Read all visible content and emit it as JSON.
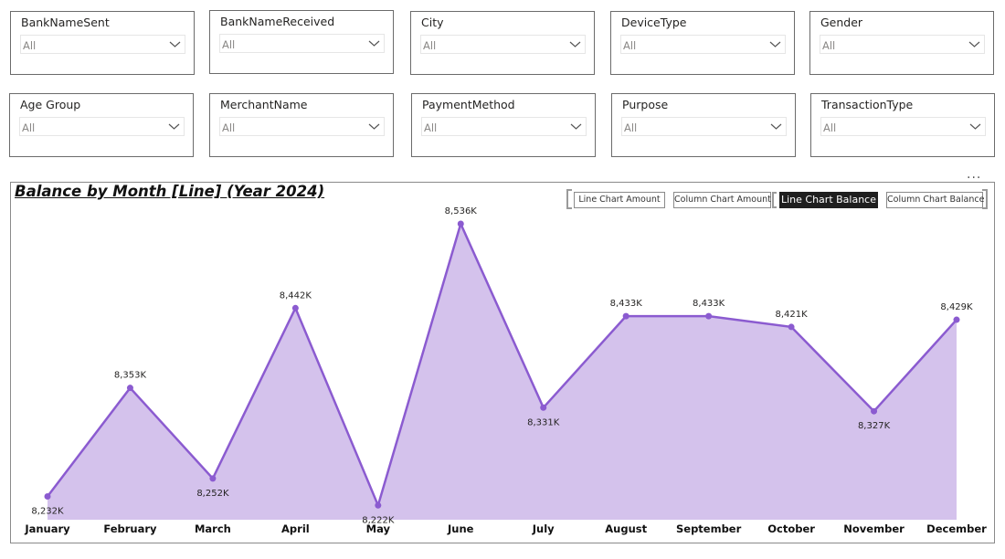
{
  "slicers": [
    {
      "title": "BankNameSent",
      "value": "All"
    },
    {
      "title": "BankNameReceived",
      "value": "All"
    },
    {
      "title": "City",
      "value": "All"
    },
    {
      "title": "DeviceType",
      "value": "All"
    },
    {
      "title": "Gender",
      "value": "All"
    },
    {
      "title": "Age Group",
      "value": "All"
    },
    {
      "title": "MerchantName",
      "value": "All"
    },
    {
      "title": "PaymentMethod",
      "value": "All"
    },
    {
      "title": "Purpose",
      "value": "All"
    },
    {
      "title": "TransactionType",
      "value": "All"
    }
  ],
  "nav_buttons": {
    "line_amount": "Line Chart Amount",
    "column_amount": "Column Chart Amount",
    "line_balance": "Line Chart Balance",
    "column_balance": "Column Chart Balance",
    "active": "line_balance"
  },
  "more_options": "···",
  "colors": {
    "line": "#8b5bd0",
    "area": "#d4c2ec"
  },
  "chart_data": {
    "type": "area",
    "title": "Balance by Month [Line] (Year 2024)",
    "categories": [
      "January",
      "February",
      "March",
      "April",
      "May",
      "June",
      "July",
      "August",
      "September",
      "October",
      "November",
      "December"
    ],
    "series": [
      {
        "values": [
          8232,
          8353,
          8252,
          8442,
          8222,
          8536,
          8331,
          8433,
          8433,
          8421,
          8327,
          8429
        ]
      }
    ],
    "data_labels": [
      "8,232K",
      "8,353K",
      "8,252K",
      "8,442K",
      "8,222K",
      "8,536K",
      "8,331K",
      "8,433K",
      "8,433K",
      "8,421K",
      "8,327K",
      "8,429K"
    ],
    "xlabel": "",
    "ylabel": "",
    "ylim": [
      8205,
      8536
    ],
    "grid": false,
    "legend": "none"
  }
}
